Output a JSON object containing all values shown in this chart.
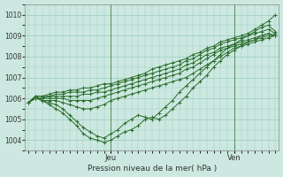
{
  "xlabel": "Pression niveau de la mer( hPa )",
  "ylim": [
    1003.5,
    1010.5
  ],
  "yticks": [
    1004,
    1005,
    1006,
    1007,
    1008,
    1009,
    1010
  ],
  "bg_color": "#cce8e0",
  "grid_color": "#99ccc0",
  "line_color": "#2d6e2d",
  "jeu_label": "Jeu",
  "ven_label": "Ven",
  "n_points": 37,
  "jeu_idx": 12,
  "ven_idx": 30,
  "lines": [
    [
      1005.8,
      1006.1,
      1005.9,
      1005.7,
      1005.5,
      1005.3,
      1005.0,
      1004.7,
      1004.3,
      1004.1,
      1004.0,
      1003.9,
      1004.0,
      1004.2,
      1004.4,
      1004.5,
      1004.7,
      1005.0,
      1005.1,
      1005.0,
      1005.2,
      1005.5,
      1005.8,
      1006.1,
      1006.5,
      1006.8,
      1007.1,
      1007.5,
      1007.8,
      1008.1,
      1008.3,
      1008.5,
      1008.7,
      1008.8,
      1009.0,
      1009.1,
      1009.0
    ],
    [
      1005.8,
      1006.1,
      1005.9,
      1005.8,
      1005.7,
      1005.5,
      1005.2,
      1004.9,
      1004.6,
      1004.4,
      1004.2,
      1004.1,
      1004.3,
      1004.5,
      1004.8,
      1005.0,
      1005.2,
      1005.1,
      1005.0,
      1005.3,
      1005.6,
      1005.9,
      1006.3,
      1006.6,
      1006.9,
      1007.2,
      1007.5,
      1007.8,
      1008.1,
      1008.4,
      1008.6,
      1008.8,
      1009.0,
      1009.2,
      1009.4,
      1009.5,
      1009.2
    ],
    [
      1005.8,
      1006.0,
      1005.9,
      1005.9,
      1005.9,
      1005.8,
      1005.7,
      1005.6,
      1005.5,
      1005.5,
      1005.6,
      1005.7,
      1005.9,
      1006.0,
      1006.1,
      1006.2,
      1006.3,
      1006.4,
      1006.5,
      1006.6,
      1006.7,
      1006.8,
      1006.9,
      1007.0,
      1007.2,
      1007.4,
      1007.6,
      1007.8,
      1008.0,
      1008.2,
      1008.4,
      1008.5,
      1008.6,
      1008.7,
      1008.8,
      1008.9,
      1009.0
    ],
    [
      1005.8,
      1006.0,
      1006.0,
      1006.0,
      1006.0,
      1006.0,
      1005.9,
      1005.9,
      1005.9,
      1005.9,
      1006.0,
      1006.1,
      1006.2,
      1006.3,
      1006.4,
      1006.5,
      1006.6,
      1006.7,
      1006.8,
      1006.9,
      1007.0,
      1007.1,
      1007.2,
      1007.4,
      1007.5,
      1007.7,
      1007.9,
      1008.1,
      1008.3,
      1008.4,
      1008.5,
      1008.6,
      1008.7,
      1008.8,
      1008.9,
      1009.0,
      1009.0
    ],
    [
      1005.8,
      1006.0,
      1006.0,
      1006.1,
      1006.1,
      1006.1,
      1006.1,
      1006.1,
      1006.2,
      1006.2,
      1006.3,
      1006.3,
      1006.4,
      1006.5,
      1006.6,
      1006.7,
      1006.8,
      1006.9,
      1007.0,
      1007.1,
      1007.2,
      1007.3,
      1007.4,
      1007.6,
      1007.7,
      1007.9,
      1008.1,
      1008.2,
      1008.4,
      1008.5,
      1008.6,
      1008.7,
      1008.8,
      1008.9,
      1009.0,
      1009.1,
      1009.0
    ],
    [
      1005.8,
      1006.1,
      1006.1,
      1006.1,
      1006.2,
      1006.2,
      1006.3,
      1006.3,
      1006.3,
      1006.4,
      1006.4,
      1006.5,
      1006.6,
      1006.7,
      1006.8,
      1006.9,
      1007.0,
      1007.1,
      1007.2,
      1007.3,
      1007.4,
      1007.5,
      1007.6,
      1007.8,
      1007.9,
      1008.1,
      1008.3,
      1008.4,
      1008.6,
      1008.7,
      1008.8,
      1008.9,
      1009.0,
      1009.1,
      1009.2,
      1009.3,
      1009.1
    ],
    [
      1005.8,
      1006.1,
      1006.1,
      1006.2,
      1006.3,
      1006.3,
      1006.4,
      1006.4,
      1006.5,
      1006.5,
      1006.6,
      1006.7,
      1006.7,
      1006.8,
      1006.9,
      1007.0,
      1007.1,
      1007.2,
      1007.4,
      1007.5,
      1007.6,
      1007.7,
      1007.8,
      1007.9,
      1008.1,
      1008.2,
      1008.4,
      1008.5,
      1008.7,
      1008.8,
      1008.9,
      1009.0,
      1009.1,
      1009.3,
      1009.5,
      1009.7,
      1010.0
    ]
  ]
}
